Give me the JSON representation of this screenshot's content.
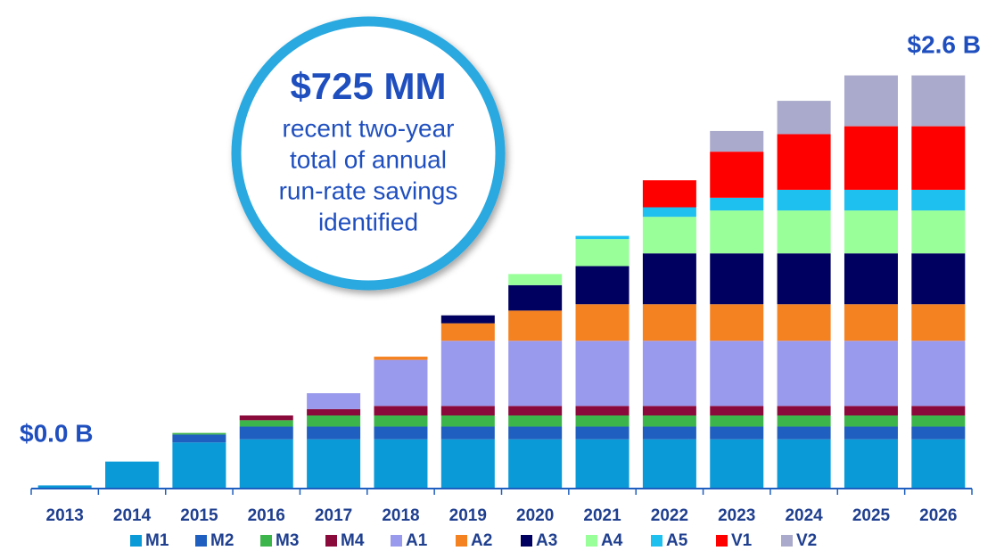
{
  "chart_data": {
    "type": "stacked_bar",
    "categories": [
      "2013",
      "2014",
      "2015",
      "2016",
      "2017",
      "2018",
      "2019",
      "2020",
      "2021",
      "2022",
      "2023",
      "2024",
      "2025",
      "2026"
    ],
    "series": [
      {
        "name": "M1",
        "color": "#0a9ad8",
        "values": [
          0.02,
          0.17,
          0.29,
          0.31,
          0.31,
          0.31,
          0.31,
          0.31,
          0.31,
          0.31,
          0.31,
          0.31,
          0.31,
          0.31
        ]
      },
      {
        "name": "M2",
        "color": "#1f5fbf",
        "values": [
          null,
          null,
          0.05,
          0.08,
          0.08,
          0.08,
          0.08,
          0.08,
          0.08,
          0.08,
          0.08,
          0.08,
          0.08,
          0.08
        ]
      },
      {
        "name": "M3",
        "color": "#3cb54a",
        "values": [
          null,
          null,
          0.01,
          0.04,
          0.07,
          0.07,
          0.07,
          0.07,
          0.07,
          0.07,
          0.07,
          0.07,
          0.07,
          0.07
        ]
      },
      {
        "name": "M4",
        "color": "#8b0a3c",
        "values": [
          null,
          null,
          null,
          0.03,
          0.04,
          0.06,
          0.06,
          0.06,
          0.06,
          0.06,
          0.06,
          0.06,
          0.06,
          0.06
        ]
      },
      {
        "name": "A1",
        "color": "#9999ee",
        "values": [
          null,
          null,
          null,
          null,
          0.1,
          0.29,
          0.41,
          0.41,
          0.41,
          0.41,
          0.41,
          0.41,
          0.41,
          0.41
        ]
      },
      {
        "name": "A2",
        "color": "#f58220",
        "values": [
          null,
          null,
          null,
          null,
          null,
          0.02,
          0.11,
          0.19,
          0.23,
          0.23,
          0.23,
          0.23,
          0.23,
          0.23
        ]
      },
      {
        "name": "A3",
        "color": "#000060",
        "values": [
          null,
          null,
          null,
          null,
          null,
          null,
          0.05,
          0.16,
          0.24,
          0.32,
          0.32,
          0.32,
          0.32,
          0.32
        ]
      },
      {
        "name": "A4",
        "color": "#99ff99",
        "values": [
          null,
          null,
          null,
          null,
          null,
          null,
          null,
          0.07,
          0.17,
          0.23,
          0.27,
          0.27,
          0.27,
          0.27
        ]
      },
      {
        "name": "A5",
        "color": "#1ec0f0",
        "values": [
          null,
          null,
          null,
          null,
          null,
          null,
          null,
          null,
          0.02,
          0.06,
          0.08,
          0.13,
          0.13,
          0.13
        ]
      },
      {
        "name": "V1",
        "color": "#ff0000",
        "values": [
          null,
          null,
          null,
          null,
          null,
          null,
          null,
          null,
          null,
          0.17,
          0.29,
          0.35,
          0.4,
          0.4
        ]
      },
      {
        "name": "V2",
        "color": "#aaaacc",
        "values": [
          null,
          null,
          null,
          null,
          null,
          null,
          null,
          null,
          null,
          null,
          0.13,
          0.21,
          0.32,
          0.32
        ]
      }
    ],
    "ylim": [
      0,
      2.85
    ],
    "annotations": [
      "$0.0 B",
      "$2.6 B"
    ],
    "callout": {
      "title": "$725 MM",
      "lines": [
        "recent two-year",
        "total of annual",
        "run-rate savings",
        "identified"
      ]
    }
  }
}
